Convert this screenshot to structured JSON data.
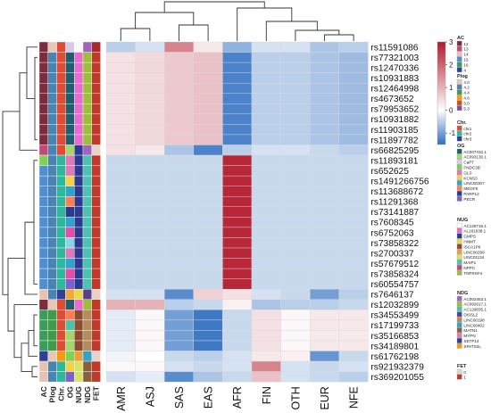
{
  "chart_data": {
    "type": "heatmap",
    "columns": [
      "AMR",
      "ASJ",
      "SAS",
      "EAS",
      "AFR",
      "FIN",
      "OTH",
      "EUR",
      "NFE"
    ],
    "rows": [
      "rs11591086",
      "rs77321003",
      "rs12470336",
      "rs10931883",
      "rs12464998",
      "rs4673652",
      "rs79953652",
      "rs10931882",
      "rs11903185",
      "rs11897782",
      "rs66825295",
      "rs11893181",
      "rs652625",
      "rs1491266756",
      "rs113688672",
      "rs11291368",
      "rs73141887",
      "rs7608345",
      "rs6752063",
      "rs73858322",
      "rs2700337",
      "rs57679512",
      "rs73858324",
      "rs60554757",
      "rs7646137",
      "rs12032899",
      "rs34553499",
      "rs17199733",
      "rs35166853",
      "rs34189801",
      "rs61762198",
      "rs921932379",
      "rs369201055"
    ],
    "values": [
      [
        -0.5,
        -0.3,
        1.6,
        0.3,
        -0.8,
        -0.3,
        -0.3,
        -0.6,
        -0.5
      ],
      [
        0.4,
        0.5,
        0.7,
        0.8,
        -1.3,
        -0.5,
        -0.5,
        -0.6,
        -0.7
      ],
      [
        0.4,
        0.5,
        0.7,
        0.8,
        -1.3,
        -0.5,
        -0.5,
        -0.6,
        -0.7
      ],
      [
        0.4,
        0.5,
        0.7,
        0.8,
        -1.3,
        -0.5,
        -0.5,
        -0.6,
        -0.7
      ],
      [
        0.4,
        0.5,
        0.7,
        0.8,
        -1.3,
        -0.5,
        -0.5,
        -0.6,
        -0.7
      ],
      [
        0.4,
        0.5,
        0.7,
        0.8,
        -1.3,
        -0.5,
        -0.5,
        -0.6,
        -0.7
      ],
      [
        0.4,
        0.5,
        0.7,
        0.8,
        -1.3,
        -0.5,
        -0.5,
        -0.6,
        -0.7
      ],
      [
        0.4,
        0.5,
        0.7,
        0.8,
        -1.3,
        -0.5,
        -0.5,
        -0.6,
        -0.7
      ],
      [
        0.4,
        0.5,
        0.7,
        0.8,
        -1.3,
        -0.5,
        -0.5,
        -0.6,
        -0.7
      ],
      [
        0.4,
        0.5,
        0.7,
        0.8,
        -1.3,
        -0.5,
        -0.5,
        -0.6,
        -0.7
      ],
      [
        0.4,
        0.3,
        -0.6,
        -1.3,
        -0.5,
        -0.3,
        -0.3,
        -0.4,
        -0.5
      ],
      [
        -0.4,
        -0.4,
        -0.4,
        -0.4,
        2.8,
        -0.4,
        -0.4,
        -0.4,
        -0.4
      ],
      [
        -0.4,
        -0.4,
        -0.4,
        -0.4,
        2.8,
        -0.4,
        -0.4,
        -0.4,
        -0.4
      ],
      [
        -0.4,
        -0.4,
        -0.4,
        -0.4,
        2.8,
        -0.4,
        -0.4,
        -0.4,
        -0.4
      ],
      [
        -0.4,
        -0.4,
        -0.4,
        -0.4,
        2.8,
        -0.4,
        -0.4,
        -0.4,
        -0.4
      ],
      [
        -0.4,
        -0.4,
        -0.4,
        -0.4,
        2.8,
        -0.4,
        -0.4,
        -0.4,
        -0.4
      ],
      [
        -0.4,
        -0.4,
        -0.4,
        -0.4,
        2.8,
        -0.4,
        -0.4,
        -0.4,
        -0.4
      ],
      [
        -0.4,
        -0.4,
        -0.4,
        -0.4,
        2.8,
        -0.4,
        -0.4,
        -0.4,
        -0.4
      ],
      [
        -0.4,
        -0.4,
        -0.4,
        -0.4,
        2.8,
        -0.4,
        -0.4,
        -0.4,
        -0.4
      ],
      [
        -0.4,
        -0.4,
        -0.4,
        -0.4,
        2.8,
        -0.4,
        -0.4,
        -0.4,
        -0.4
      ],
      [
        -0.4,
        -0.4,
        -0.4,
        -0.4,
        2.8,
        -0.4,
        -0.4,
        -0.4,
        -0.4
      ],
      [
        -0.4,
        -0.4,
        -0.4,
        -0.4,
        2.8,
        -0.4,
        -0.4,
        -0.4,
        -0.4
      ],
      [
        -0.4,
        -0.4,
        -0.4,
        -0.4,
        2.8,
        -0.4,
        -0.4,
        -0.4,
        -0.4
      ],
      [
        -0.4,
        -0.4,
        -0.4,
        -0.4,
        2.8,
        -0.4,
        -0.4,
        -0.4,
        -0.4
      ],
      [
        -0.3,
        -0.3,
        -1.2,
        0.6,
        0.4,
        -0.3,
        -0.4,
        -1.0,
        -0.5
      ],
      [
        1.0,
        1.0,
        -0.5,
        -0.4,
        0.2,
        -0.6,
        -0.5,
        -0.5,
        -0.4
      ],
      [
        -0.2,
        0.1,
        -1.0,
        -1.4,
        -0.4,
        0.4,
        0.1,
        0.3,
        0.3
      ],
      [
        -0.2,
        0.1,
        -1.0,
        -1.4,
        -0.4,
        0.4,
        0.1,
        0.3,
        0.3
      ],
      [
        -0.2,
        0.1,
        -1.0,
        -1.4,
        -0.4,
        0.4,
        0.1,
        0.3,
        0.3
      ],
      [
        -0.2,
        0.1,
        -1.0,
        -1.4,
        -0.4,
        0.4,
        0.1,
        0.3,
        0.3
      ],
      [
        -0.1,
        0.0,
        -0.4,
        -0.5,
        -0.3,
        0.3,
        0.2,
        -1.1,
        -0.4
      ],
      [
        0.1,
        0.1,
        -0.3,
        -0.4,
        -0.3,
        1.6,
        -0.3,
        -0.4,
        -0.3
      ],
      [
        -0.3,
        -0.2,
        -1.2,
        -0.6,
        -0.4,
        0.8,
        -0.3,
        -0.4,
        -0.5
      ]
    ],
    "color_scale": {
      "min": -1.5,
      "mid": 0,
      "max": 3,
      "ticks": [
        3,
        2,
        1,
        0,
        -1
      ],
      "colors": [
        "#2f6fc1",
        "#ffffff",
        "#b2182b"
      ]
    },
    "annotation_tracks": [
      "AC",
      "Plog",
      "Chr.",
      "OG",
      "NUG",
      "NDG",
      "FET"
    ],
    "annotations": [
      [
        "#7b2d3f",
        "#e8c7b6",
        "#e34a33",
        "#d8c9ea",
        "#f9f9f9",
        "#9f63c2",
        "#a82a2a"
      ],
      [
        "#7b2d3f",
        "#4a84b2",
        "#e34a33",
        "#1f5f6d",
        "#e86bd0",
        "#9bbf3a",
        "#c0392b"
      ],
      [
        "#7b2d3f",
        "#4a84b2",
        "#e34a33",
        "#1f5f6d",
        "#e86bd0",
        "#9bbf3a",
        "#c0392b"
      ],
      [
        "#7b2d3f",
        "#4a84b2",
        "#e34a33",
        "#1f5f6d",
        "#e86bd0",
        "#9bbf3a",
        "#c0392b"
      ],
      [
        "#7b2d3f",
        "#4a84b2",
        "#e34a33",
        "#1f5f6d",
        "#e86bd0",
        "#9bbf3a",
        "#c0392b"
      ],
      [
        "#7b2d3f",
        "#4a84b2",
        "#e34a33",
        "#1f5f6d",
        "#e86bd0",
        "#9bbf3a",
        "#c0392b"
      ],
      [
        "#7b2d3f",
        "#4a84b2",
        "#e34a33",
        "#1f5f6d",
        "#e86bd0",
        "#9bbf3a",
        "#c0392b"
      ],
      [
        "#7b2d3f",
        "#4a84b2",
        "#e34a33",
        "#1f5f6d",
        "#e86bd0",
        "#9bbf3a",
        "#c0392b"
      ],
      [
        "#7b2d3f",
        "#4a84b2",
        "#e34a33",
        "#1f5f6d",
        "#e86bd0",
        "#9bbf3a",
        "#c0392b"
      ],
      [
        "#7b2d3f",
        "#4a84b2",
        "#e34a33",
        "#1f5f6d",
        "#e86bd0",
        "#9bbf3a",
        "#c0392b"
      ],
      [
        "#c7457a",
        "#4a84b2",
        "#e34a33",
        "#a5d66b",
        "#2b3a8f",
        "#9f63c2",
        "#e9d3c6"
      ],
      [
        "#7fd151",
        "#4a84b2",
        "#2db89c",
        "#e07ab7",
        "#2b3a8f",
        "#4cc2b1",
        "#c0392b"
      ],
      [
        "#4f8fcf",
        "#4a84b2",
        "#2db89c",
        "#e07ab7",
        "#2b3a8f",
        "#4cc2b1",
        "#c0392b"
      ],
      [
        "#4f8fcf",
        "#4a84b2",
        "#2db89c",
        "#f2d14b",
        "#2b3a8f",
        "#4cc2b1",
        "#c0392b"
      ],
      [
        "#4f8fcf",
        "#4a84b2",
        "#2db89c",
        "#2fa3c9",
        "#2b3a8f",
        "#4cc2b1",
        "#c0392b"
      ],
      [
        "#4f8fcf",
        "#4a84b2",
        "#2db89c",
        "#ff7f50",
        "#2b3a8f",
        "#4cc2b1",
        "#c0392b"
      ],
      [
        "#4f8fcf",
        "#4a84b2",
        "#2db89c",
        "#2b3a8f",
        "#2b3a8f",
        "#4cc2b1",
        "#c0392b"
      ],
      [
        "#4f8fcf",
        "#4a84b2",
        "#2db89c",
        "#2fa3c9",
        "#2b3a8f",
        "#4cc2b1",
        "#c0392b"
      ],
      [
        "#4f8fcf",
        "#4a84b2",
        "#2db89c",
        "#e84ba7",
        "#2b3a8f",
        "#4cc2b1",
        "#c0392b"
      ],
      [
        "#4f8fcf",
        "#4a84b2",
        "#2db89c",
        "#8bd3e6",
        "#2b3a8f",
        "#4cc2b1",
        "#c0392b"
      ],
      [
        "#4f8fcf",
        "#4a84b2",
        "#2db89c",
        "#e07ab7",
        "#2b3a8f",
        "#4cc2b1",
        "#c0392b"
      ],
      [
        "#4f8fcf",
        "#4a84b2",
        "#2db89c",
        "#2fa3c9",
        "#2b3a8f",
        "#4cc2b1",
        "#c0392b"
      ],
      [
        "#4f8fcf",
        "#4a84b2",
        "#2db89c",
        "#e84ba7",
        "#2b3a8f",
        "#4cc2b1",
        "#c0392b"
      ],
      [
        "#4f8fcf",
        "#4a84b2",
        "#2db89c",
        "#7b61c9",
        "#2b3a8f",
        "#4cc2b1",
        "#c0392b"
      ],
      [
        "#e7c2b3",
        "#4a84b2",
        "#2f3f96",
        "#f2a93b",
        "#e8d84a",
        "#5c3d8f",
        "#e9d3c6"
      ],
      [
        "#7b2d3f",
        "#e8c7b6",
        "#e34a33",
        "#1f5f6d",
        "#e86bd0",
        "#9bbf3a",
        "#c0392b"
      ],
      [
        "#3a9d5d",
        "#3f9a4a",
        "#e34a33",
        "#ff7f50",
        "#8b4c2f",
        "#b38b5d",
        "#c0392b"
      ],
      [
        "#3a9d5d",
        "#3f9a4a",
        "#e34a33",
        "#4cc2b1",
        "#8b4c2f",
        "#b38b5d",
        "#c0392b"
      ],
      [
        "#3a9d5d",
        "#3f9a4a",
        "#e34a33",
        "#a5d66b",
        "#8b4c2f",
        "#b38b5d",
        "#c0392b"
      ],
      [
        "#3a9d5d",
        "#3f9a4a",
        "#e34a33",
        "#a5d66b",
        "#8b4c2f",
        "#b38b5d",
        "#c0392b"
      ],
      [
        "#2f3f96",
        "#e8c7b6",
        "#f39c12",
        "#7fd151",
        "#e7a23d",
        "#2fa3c9",
        "#e9d3c6"
      ],
      [
        "#e7c2b3",
        "#4a84b2",
        "#2db89c",
        "#f2d14b",
        "#d7e26b",
        "#8b5e3c",
        "#c0392b"
      ],
      [
        "#e7c2b3",
        "#4a84b2",
        "#2db89c",
        "#7b61c9",
        "#d7e26b",
        "#8b5e3c",
        "#c0392b"
      ]
    ],
    "legends": [
      {
        "title": "AC",
        "items": [
          {
            "label": "12",
            "color": "#7b2d3f"
          },
          {
            "label": "13",
            "color": "#c7457a"
          },
          {
            "label": "14",
            "color": "#e7c2b3"
          },
          {
            "label": "15",
            "color": "#4f8fcf"
          },
          {
            "label": "16",
            "color": "#3a9d5d"
          },
          {
            "label": "4",
            "color": "#2f3f96"
          }
        ]
      },
      {
        "title": "Plog",
        "items": [
          {
            "label": "4.0",
            "color": "#e8c7b6"
          },
          {
            "label": "4.2",
            "color": "#4a84b2"
          },
          {
            "label": "4.4",
            "color": "#3f9a4a"
          },
          {
            "label": "4.6",
            "color": "#f39c12"
          },
          {
            "label": "5.0",
            "color": "#d35400"
          },
          {
            "label": "5.3",
            "color": "#8e44ad"
          }
        ]
      },
      {
        "title": "Chr.",
        "items": [
          {
            "label": "chr1",
            "color": "#e34a33"
          },
          {
            "label": "chr2",
            "color": "#2db89c"
          },
          {
            "label": "chr3",
            "color": "#2f3f96"
          }
        ]
      },
      {
        "title": "OG",
        "items": [
          {
            "label": "AC007432.1",
            "color": "#1f5f6d"
          },
          {
            "label": "AC093130.1",
            "color": "#a5d66b"
          },
          {
            "label": "CaPT",
            "color": "#d8c9ea"
          },
          {
            "label": "FNDC3B",
            "color": "#7fd151"
          },
          {
            "label": "GLS",
            "color": "#e07ab7"
          },
          {
            "label": "KCNS3",
            "color": "#f2d14b"
          },
          {
            "label": "LINC00307",
            "color": "#2fa3c9"
          },
          {
            "label": "MEGF6",
            "color": "#ff7f50"
          },
          {
            "label": "PARP12",
            "color": "#2b3a8f"
          },
          {
            "label": "PECR",
            "color": "#7b61c9"
          }
        ]
      },
      {
        "title": "NUG",
        "items": [
          {
            "label": "AC126716.1",
            "color": "#f9f9f9"
          },
          {
            "label": "AL161638.1",
            "color": "#e86bd0"
          },
          {
            "label": "GMPS",
            "color": "#2b3a8f"
          },
          {
            "label": "HNMT",
            "color": "#e8d84a"
          },
          {
            "label": "ISCA1P6",
            "color": "#8b4c2f"
          },
          {
            "label": "LINC00299",
            "color": "#e7a23d"
          },
          {
            "label": "LINC01134",
            "color": "#d7e26b"
          },
          {
            "label": "MAIP1",
            "color": "#4cc2b1"
          },
          {
            "label": "NPPC",
            "color": "#c7457a"
          },
          {
            "label": "TNFRSF4",
            "color": "#9bbf3a"
          }
        ]
      },
      {
        "title": "NDG",
        "items": [
          {
            "label": "AC002453.1",
            "color": "#9f63c2"
          },
          {
            "label": "AC092617.1",
            "color": "#9bbf3a"
          },
          {
            "label": "AC129835.1",
            "color": "#4cc2b1"
          },
          {
            "label": "DISSL2",
            "color": "#5c3d8f"
          },
          {
            "label": "LINC00198",
            "color": "#b38b5d"
          },
          {
            "label": "LINC00402",
            "color": "#2fa3c9"
          },
          {
            "label": "MATN1",
            "color": "#8b5e3c"
          },
          {
            "label": "MYPN",
            "color": "#e07ab7"
          },
          {
            "label": "SETP14",
            "color": "#2f3f96"
          },
          {
            "label": "SPATS2L",
            "color": "#f39c12"
          }
        ]
      },
      {
        "title": "FET",
        "items": [
          {
            "label": "0",
            "color": "#e9d3c6"
          },
          {
            "label": "1",
            "color": "#c0392b"
          }
        ]
      }
    ]
  }
}
